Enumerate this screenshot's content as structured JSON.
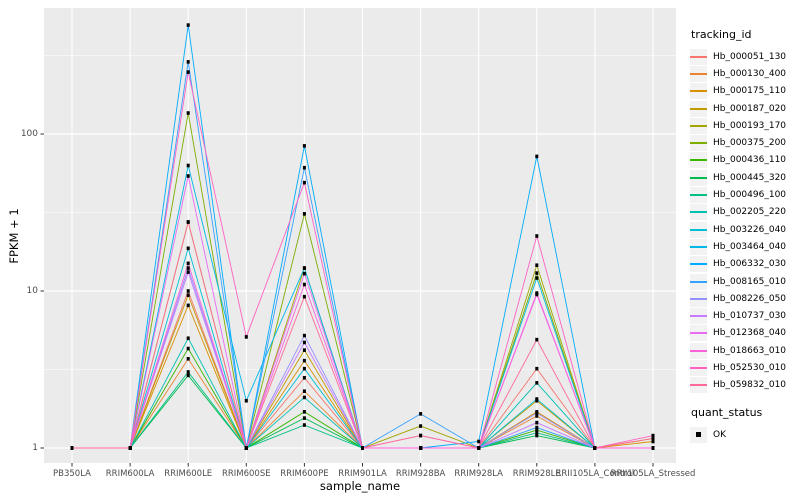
{
  "ui": {
    "panel_bg": "#ebebeb",
    "grid_color": "#ffffff",
    "point_color": "#000000",
    "axis_text_color": "#4d4d4d",
    "legend_key_bg": "#f2f2f2"
  },
  "chart_data": {
    "type": "line",
    "title": "",
    "xlabel": "sample_name",
    "ylabel": "FPKM + 1",
    "y_scale": "log10",
    "y_ticks": [
      1,
      10,
      100
    ],
    "ylim": [
      1,
      550
    ],
    "grid": "on",
    "legend_position": "right",
    "legend_title": "tracking_id",
    "shape_legend": {
      "title": "quant_status",
      "items": [
        {
          "label": "OK"
        }
      ]
    },
    "categories": [
      "PB350LA",
      "RRIM600LA",
      "RRIM600LE",
      "RRIM600SE",
      "RRIM600PE",
      "RRIM901LA",
      "RRIM928BA",
      "RRIM928LA",
      "RRIM928LE",
      "RRII105LA_Control",
      "RRII105LA_Stressed"
    ],
    "series": [
      {
        "name": "Hb_000051_130",
        "color": "#F8766D",
        "values": [
          1,
          1,
          10,
          1,
          2.8,
          1,
          1,
          1,
          3.2,
          1,
          1
        ]
      },
      {
        "name": "Hb_000130_400",
        "color": "#EA8331",
        "values": [
          1,
          1,
          3.7,
          1,
          2.3,
          1,
          1,
          1,
          1.6,
          1,
          1
        ]
      },
      {
        "name": "Hb_000175_110",
        "color": "#D89000",
        "values": [
          1,
          1,
          8.1,
          1,
          3.6,
          1,
          1,
          1,
          1.7,
          1,
          1.1
        ]
      },
      {
        "name": "Hb_000187_020",
        "color": "#C09B00",
        "values": [
          1,
          1,
          9.4,
          1,
          4.2,
          1,
          1,
          1,
          2,
          1,
          1.15
        ]
      },
      {
        "name": "Hb_000193_170",
        "color": "#A3A500",
        "values": [
          1,
          1,
          27.5,
          1,
          14,
          1,
          1.38,
          1,
          14.6,
          1,
          1
        ]
      },
      {
        "name": "Hb_000375_200",
        "color": "#7CAE00",
        "values": [
          1,
          1,
          136,
          1,
          31,
          1,
          1,
          1,
          13,
          1,
          1
        ]
      },
      {
        "name": "Hb_000436_110",
        "color": "#39B600",
        "values": [
          1,
          1,
          4.3,
          1,
          1.7,
          1,
          1,
          1,
          1.3,
          1,
          1
        ]
      },
      {
        "name": "Hb_000445_320",
        "color": "#00BB4E",
        "values": [
          1,
          1,
          2.9,
          1,
          1.55,
          1,
          1,
          1,
          1.2,
          1,
          1
        ]
      },
      {
        "name": "Hb_000496_100",
        "color": "#00C087",
        "values": [
          1,
          1,
          3.05,
          1,
          1.4,
          1,
          1,
          1,
          1.25,
          1,
          1
        ]
      },
      {
        "name": "Hb_002205_220",
        "color": "#00C0B2",
        "values": [
          1,
          1,
          5,
          1,
          2.1,
          1,
          1,
          1,
          2.6,
          1,
          1
        ]
      },
      {
        "name": "Hb_003226_040",
        "color": "#00BFD4",
        "values": [
          1,
          1,
          18.7,
          1,
          3.2,
          1,
          1,
          1,
          2.05,
          1,
          1
        ]
      },
      {
        "name": "Hb_003464_040",
        "color": "#00B8E7",
        "values": [
          1,
          1,
          63,
          2,
          14,
          1,
          1,
          1,
          12.1,
          1,
          1
        ]
      },
      {
        "name": "Hb_006332_030",
        "color": "#00ACFC",
        "values": [
          1,
          1,
          494,
          1,
          84,
          1,
          1,
          1.1,
          72,
          1,
          1
        ]
      },
      {
        "name": "Hb_008165_010",
        "color": "#35A2FF",
        "values": [
          1,
          1,
          288,
          1,
          61,
          1,
          1.65,
          1,
          1.35,
          1,
          1
        ]
      },
      {
        "name": "Hb_008226_050",
        "color": "#9590FF",
        "values": [
          1,
          1,
          14,
          1,
          5.2,
          1,
          1,
          1,
          1.67,
          1,
          1
        ]
      },
      {
        "name": "Hb_010737_030",
        "color": "#C77CFF",
        "values": [
          1,
          1,
          13.2,
          1,
          4.7,
          1,
          1,
          1,
          1.45,
          1,
          1
        ]
      },
      {
        "name": "Hb_012368_040",
        "color": "#E76BF3",
        "values": [
          1,
          1,
          54,
          1,
          12.9,
          1,
          1,
          1,
          9.7,
          1,
          1
        ]
      },
      {
        "name": "Hb_018663_010",
        "color": "#FA62DB",
        "values": [
          1,
          1,
          15,
          1,
          11,
          1,
          1,
          1,
          9.5,
          1,
          1
        ]
      },
      {
        "name": "Hb_052530_010",
        "color": "#FF61C3",
        "values": [
          1,
          1,
          248,
          5.1,
          49,
          1,
          1.2,
          1,
          22.4,
          1,
          1.2
        ]
      },
      {
        "name": "Hb_059832_010",
        "color": "#FF6A98",
        "values": [
          1,
          1,
          27.5,
          1,
          9.2,
          1,
          1.2,
          1,
          4.9,
          1,
          1.15
        ]
      }
    ]
  }
}
